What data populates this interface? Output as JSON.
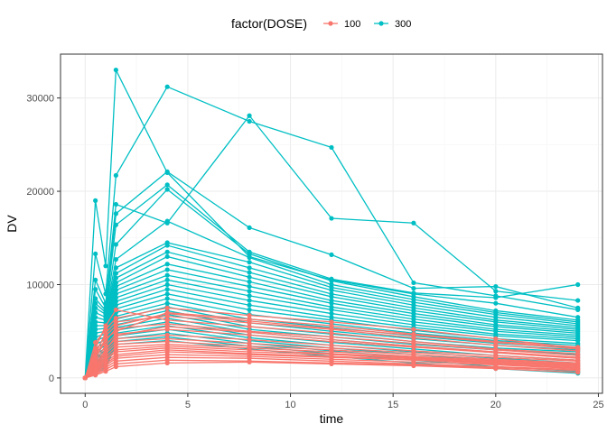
{
  "chart_data": {
    "type": "line",
    "title": "",
    "xlabel": "time",
    "ylabel": "DV",
    "xlim": [
      -1.2,
      25.2
    ],
    "ylim": [
      -1650,
      34700
    ],
    "xticks": [
      0,
      5,
      10,
      15,
      20,
      25
    ],
    "yticks": [
      0,
      10000,
      20000,
      30000
    ],
    "grid": true,
    "legend": {
      "title": "factor(DOSE)",
      "position": "top",
      "entries": [
        {
          "label": "100",
          "color": "#F8766D"
        },
        {
          "label": "300",
          "color": "#00BFC4"
        }
      ]
    },
    "time_points": [
      0,
      0.5,
      1,
      1.5,
      4,
      8,
      12,
      16,
      20,
      24
    ],
    "series": [
      {
        "group": "100",
        "color": "#F8766D",
        "values": [
          0,
          3800,
          5200,
          6400,
          7500,
          6700,
          6000,
          5200,
          4200,
          3200
        ]
      },
      {
        "group": "100",
        "color": "#F8766D",
        "values": [
          0,
          3200,
          5600,
          7300,
          6200,
          5500,
          4800,
          3900,
          3100,
          2600
        ]
      },
      {
        "group": "100",
        "color": "#F8766D",
        "values": [
          0,
          2600,
          4800,
          6000,
          6600,
          5900,
          5200,
          4300,
          3500,
          2900
        ]
      },
      {
        "group": "100",
        "color": "#F8766D",
        "values": [
          0,
          2100,
          4000,
          5300,
          5800,
          5000,
          4400,
          3700,
          3000,
          2400
        ]
      },
      {
        "group": "100",
        "color": "#F8766D",
        "values": [
          0,
          1800,
          3500,
          4700,
          5200,
          4600,
          3900,
          3300,
          2700,
          2100
        ]
      },
      {
        "group": "100",
        "color": "#F8766D",
        "values": [
          0,
          1500,
          3100,
          4200,
          4600,
          4100,
          3500,
          2900,
          2400,
          1900
        ]
      },
      {
        "group": "100",
        "color": "#F8766D",
        "values": [
          0,
          1300,
          2800,
          3900,
          4200,
          3700,
          3200,
          2700,
          2200,
          1800
        ]
      },
      {
        "group": "100",
        "color": "#F8766D",
        "values": [
          0,
          1200,
          2600,
          3600,
          3900,
          3400,
          3000,
          2500,
          2000,
          1600
        ]
      },
      {
        "group": "100",
        "color": "#F8766D",
        "values": [
          0,
          1100,
          2300,
          3300,
          3600,
          3200,
          2800,
          2300,
          1900,
          1500
        ]
      },
      {
        "group": "100",
        "color": "#F8766D",
        "values": [
          0,
          1000,
          2100,
          3000,
          3400,
          3000,
          2600,
          2200,
          1800,
          1400
        ]
      },
      {
        "group": "100",
        "color": "#F8766D",
        "values": [
          0,
          900,
          1900,
          2800,
          3200,
          2800,
          2500,
          2100,
          1700,
          1300
        ]
      },
      {
        "group": "100",
        "color": "#F8766D",
        "values": [
          0,
          800,
          1700,
          2500,
          3000,
          2600,
          2300,
          2000,
          1600,
          1200
        ]
      },
      {
        "group": "100",
        "color": "#F8766D",
        "values": [
          0,
          700,
          1500,
          2300,
          2800,
          2500,
          2200,
          1900,
          1500,
          1100
        ]
      },
      {
        "group": "100",
        "color": "#F8766D",
        "values": [
          0,
          600,
          1300,
          2100,
          2500,
          2300,
          2000,
          1700,
          1400,
          1000
        ]
      },
      {
        "group": "100",
        "color": "#F8766D",
        "values": [
          0,
          500,
          1100,
          1800,
          2200,
          2100,
          1800,
          1500,
          1200,
          900
        ]
      },
      {
        "group": "100",
        "color": "#F8766D",
        "values": [
          0,
          400,
          900,
          1500,
          1900,
          1800,
          1600,
          1400,
          1100,
          800
        ]
      },
      {
        "group": "100",
        "color": "#F8766D",
        "values": [
          0,
          300,
          700,
          1200,
          1600,
          1700,
          1500,
          1300,
          1000,
          600
        ]
      },
      {
        "group": "100",
        "color": "#F8766D",
        "values": [
          0,
          2900,
          4500,
          5600,
          6900,
          6100,
          5300,
          4600,
          3800,
          3100
        ]
      },
      {
        "group": "100",
        "color": "#F8766D",
        "values": [
          0,
          2400,
          4200,
          5000,
          7000,
          6300,
          5600,
          4700,
          3900,
          3300
        ]
      },
      {
        "group": "100",
        "color": "#F8766D",
        "values": [
          0,
          1600,
          3000,
          4500,
          5500,
          4900,
          4100,
          3400,
          2800,
          2200
        ]
      },
      {
        "group": "300",
        "color": "#00BFC4",
        "values": [
          0,
          19000,
          12000,
          33000,
          22000,
          13000,
          10500,
          9000,
          8000,
          6500
        ]
      },
      {
        "group": "300",
        "color": "#00BFC4",
        "values": [
          0,
          13300,
          9000,
          21700,
          31200,
          27500,
          24700,
          10200,
          8800,
          7300
        ]
      },
      {
        "group": "300",
        "color": "#00BFC4",
        "values": [
          0,
          10500,
          8000,
          18600,
          16600,
          28100,
          17100,
          16600,
          9300,
          8300
        ]
      },
      {
        "group": "300",
        "color": "#00BFC4",
        "values": [
          0,
          9500,
          7500,
          17600,
          22100,
          16100,
          13200,
          9600,
          9800,
          7500
        ]
      },
      {
        "group": "300",
        "color": "#00BFC4",
        "values": [
          0,
          8500,
          7200,
          16400,
          20700,
          13500,
          10600,
          9100,
          8600,
          10000
        ]
      },
      {
        "group": "300",
        "color": "#00BFC4",
        "values": [
          0,
          8000,
          7000,
          14300,
          20200,
          13300,
          10400,
          8700,
          7200,
          6200
        ]
      },
      {
        "group": "300",
        "color": "#00BFC4",
        "values": [
          0,
          7500,
          6800,
          12700,
          16800,
          12900,
          10000,
          8400,
          7000,
          6000
        ]
      },
      {
        "group": "300",
        "color": "#00BFC4",
        "values": [
          0,
          7000,
          6500,
          11800,
          14500,
          12400,
          9700,
          8100,
          6800,
          5800
        ]
      },
      {
        "group": "300",
        "color": "#00BFC4",
        "values": [
          0,
          6500,
          6200,
          11200,
          14200,
          11800,
          9400,
          7800,
          6500,
          5600
        ]
      },
      {
        "group": "300",
        "color": "#00BFC4",
        "values": [
          0,
          6000,
          5900,
          10700,
          13500,
          11300,
          9000,
          7500,
          6200,
          5400
        ]
      },
      {
        "group": "300",
        "color": "#00BFC4",
        "values": [
          0,
          5600,
          5600,
          10200,
          13000,
          10800,
          8700,
          7200,
          6000,
          5200
        ]
      },
      {
        "group": "300",
        "color": "#00BFC4",
        "values": [
          0,
          5200,
          5300,
          9800,
          12200,
          10300,
          8300,
          6900,
          5700,
          5000
        ]
      },
      {
        "group": "300",
        "color": "#00BFC4",
        "values": [
          0,
          4800,
          5000,
          9400,
          11600,
          9800,
          8000,
          6600,
          5500,
          4800
        ]
      },
      {
        "group": "300",
        "color": "#00BFC4",
        "values": [
          0,
          4400,
          4700,
          9000,
          11000,
          9300,
          7600,
          6300,
          5200,
          4600
        ]
      },
      {
        "group": "300",
        "color": "#00BFC4",
        "values": [
          0,
          4000,
          4400,
          8600,
          10500,
          8800,
          7300,
          6000,
          5000,
          4400
        ]
      },
      {
        "group": "300",
        "color": "#00BFC4",
        "values": [
          0,
          3600,
          4100,
          8200,
          10000,
          8300,
          6900,
          5700,
          4700,
          4200
        ]
      },
      {
        "group": "300",
        "color": "#00BFC4",
        "values": [
          0,
          3200,
          3800,
          7800,
          9500,
          7800,
          6500,
          5400,
          4500,
          4000
        ]
      },
      {
        "group": "300",
        "color": "#00BFC4",
        "values": [
          0,
          2800,
          3500,
          7400,
          9000,
          7300,
          6200,
          5100,
          4200,
          3700
        ]
      },
      {
        "group": "300",
        "color": "#00BFC4",
        "values": [
          0,
          2500,
          3200,
          7000,
          8500,
          6800,
          5800,
          4800,
          4000,
          3500
        ]
      },
      {
        "group": "300",
        "color": "#00BFC4",
        "values": [
          0,
          2200,
          3000,
          6600,
          8000,
          6300,
          5400,
          4500,
          3700,
          3200
        ]
      },
      {
        "group": "300",
        "color": "#00BFC4",
        "values": [
          0,
          2000,
          2800,
          6300,
          7600,
          5900,
          5000,
          4200,
          3500,
          3000
        ]
      },
      {
        "group": "300",
        "color": "#00BFC4",
        "values": [
          0,
          1800,
          2600,
          6000,
          7200,
          5500,
          4700,
          3900,
          3200,
          2800
        ]
      },
      {
        "group": "300",
        "color": "#00BFC4",
        "values": [
          0,
          1600,
          2400,
          5700,
          6800,
          5200,
          4400,
          3600,
          3000,
          2500
        ]
      },
      {
        "group": "300",
        "color": "#00BFC4",
        "values": [
          0,
          1400,
          2200,
          5400,
          6400,
          4900,
          4100,
          3400,
          2700,
          2200
        ]
      },
      {
        "group": "300",
        "color": "#00BFC4",
        "values": [
          0,
          1200,
          2000,
          5100,
          6000,
          4600,
          3800,
          3100,
          2400,
          1900
        ]
      },
      {
        "group": "300",
        "color": "#00BFC4",
        "values": [
          0,
          1000,
          1800,
          4800,
          5600,
          4300,
          3500,
          2800,
          2100,
          1600
        ]
      },
      {
        "group": "300",
        "color": "#00BFC4",
        "values": [
          0,
          900,
          1600,
          4500,
          5200,
          4000,
          3200,
          2500,
          1800,
          1300
        ]
      },
      {
        "group": "300",
        "color": "#00BFC4",
        "values": [
          0,
          800,
          1400,
          4200,
          4800,
          3700,
          2900,
          2200,
          1500,
          1000
        ]
      },
      {
        "group": "300",
        "color": "#00BFC4",
        "values": [
          0,
          700,
          1200,
          3900,
          4400,
          3400,
          2600,
          1900,
          1200,
          700
        ]
      },
      {
        "group": "300",
        "color": "#00BFC4",
        "values": [
          0,
          600,
          1000,
          3600,
          4000,
          3100,
          2300,
          1600,
          1000,
          500
        ]
      }
    ]
  }
}
